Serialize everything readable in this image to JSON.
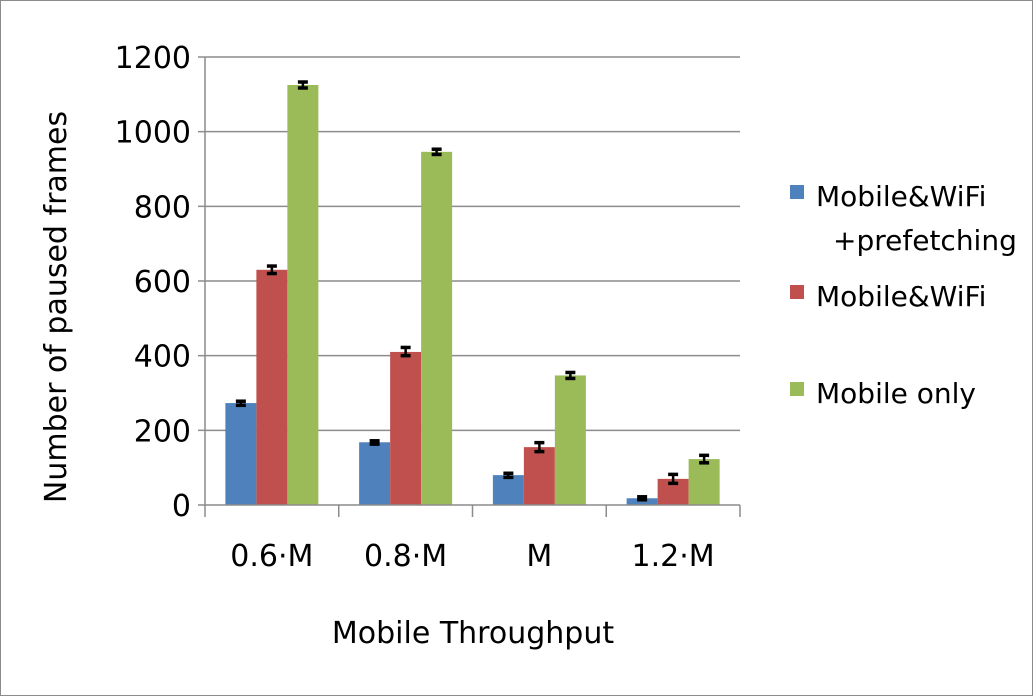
{
  "chart_data": {
    "type": "bar",
    "categories": [
      "0.6·M",
      "0.8·M",
      "M",
      "1.2·M"
    ],
    "series": [
      {
        "name": "Mobile&WiFi +prefetching",
        "legend_lines": [
          "Mobile&WiFi",
          "+prefetching"
        ],
        "color": "#4f81bd",
        "values": [
          273,
          168,
          80,
          18
        ],
        "err_low": [
          6,
          5,
          6,
          4
        ],
        "err_high": [
          5,
          4,
          5,
          4
        ]
      },
      {
        "name": "Mobile&WiFi",
        "legend_lines": [
          "Mobile&WiFi"
        ],
        "color": "#c0504d",
        "values": [
          630,
          410,
          155,
          70
        ],
        "err_low": [
          10,
          10,
          12,
          12
        ],
        "err_high": [
          10,
          12,
          12,
          12
        ]
      },
      {
        "name": "Mobile only",
        "legend_lines": [
          "Mobile only"
        ],
        "color": "#9bbb59",
        "values": [
          1125,
          946,
          347,
          123
        ],
        "err_low": [
          8,
          7,
          8,
          10
        ],
        "err_high": [
          8,
          7,
          8,
          10
        ]
      }
    ],
    "xlabel": "Mobile Throughput",
    "ylabel": "Number of paused frames",
    "ylim": [
      0,
      1200
    ],
    "yticks": [
      0,
      200,
      400,
      600,
      800,
      1000,
      1200
    ],
    "grid": true,
    "legend_position": "right"
  }
}
